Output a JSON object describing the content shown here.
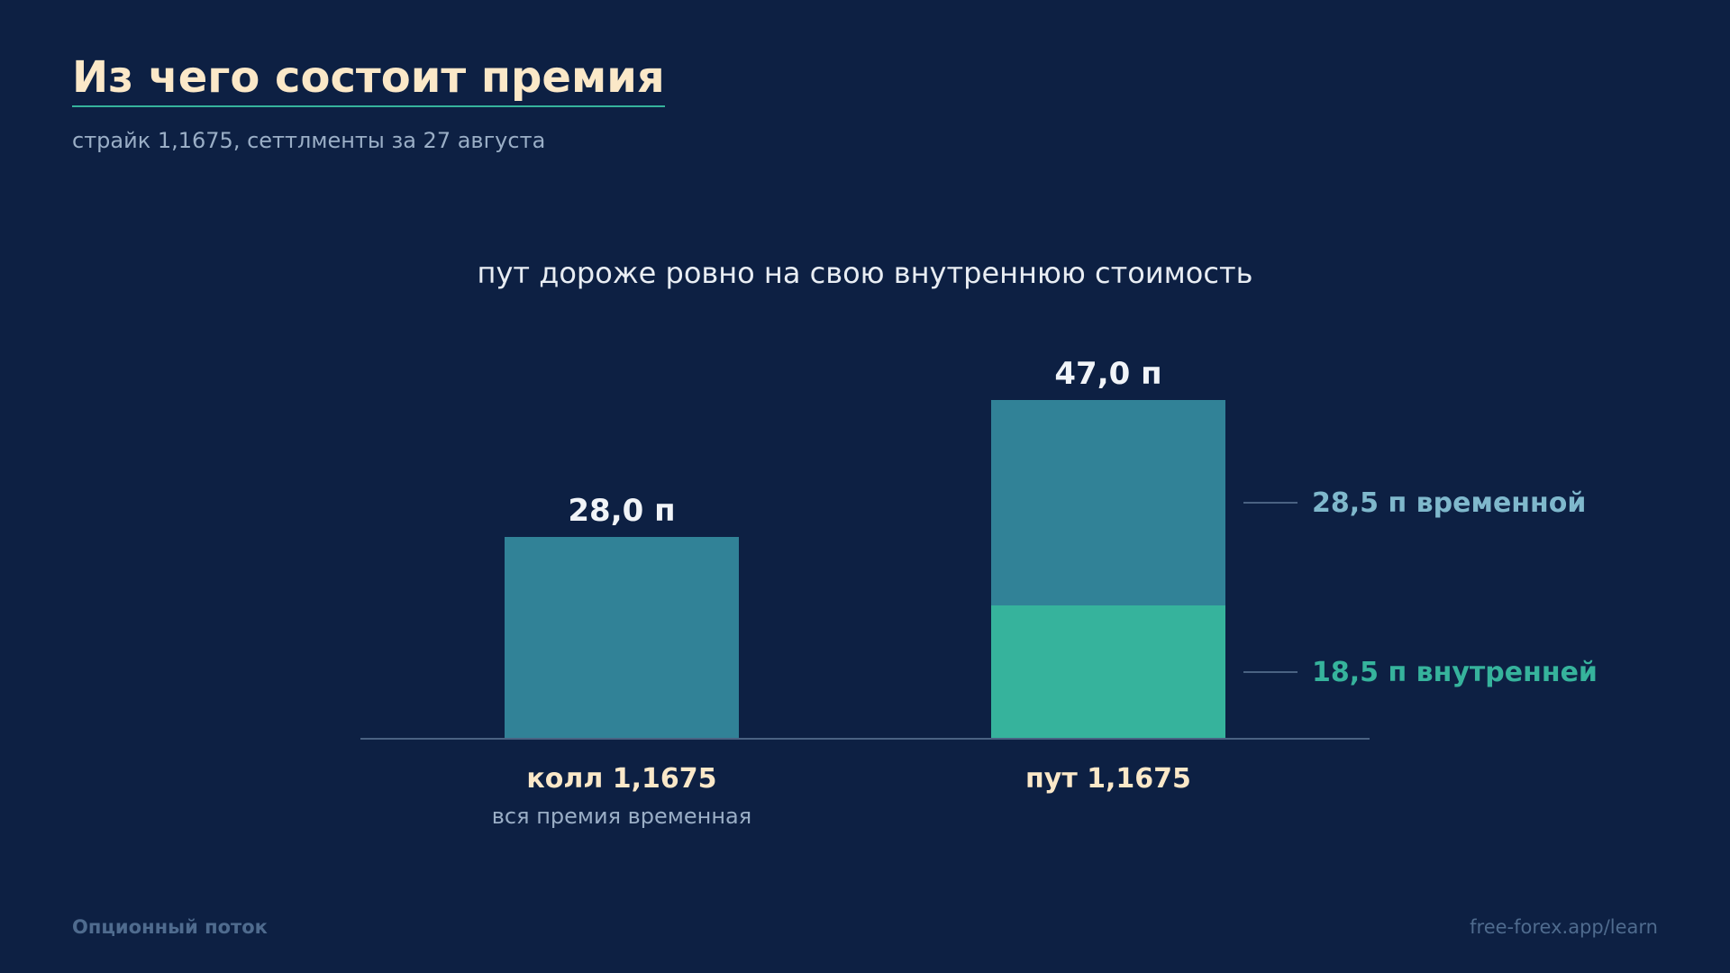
{
  "header": {
    "title": "Из чего состоит премия",
    "subtitle": "страйк 1,1675, сеттлменты за 27 августа"
  },
  "footer": {
    "brand": "Опционный поток",
    "link": "free-forex.app/learn"
  },
  "chart_data": {
    "type": "bar",
    "stacked": true,
    "title": "пут дороже ровно на свою внутреннюю стоимость",
    "categories": [
      "колл 1,1675",
      "пут 1,1675"
    ],
    "category_notes": [
      "вся премия временная",
      ""
    ],
    "totals": [
      28.0,
      47.0
    ],
    "total_labels": [
      "28,0 п",
      "47,0 п"
    ],
    "series": [
      {
        "key": "intrinsic",
        "values": [
          0,
          18.5
        ],
        "color": "#36b39c",
        "label": "18,5 п внутренней"
      },
      {
        "key": "time",
        "values": [
          28.0,
          28.5
        ],
        "color": "#318297",
        "label": "28,5 п временной"
      }
    ],
    "label_colors": {
      "time": "#7fb8cc",
      "intrinsic": "#36b39c"
    },
    "ylim": [
      0,
      47
    ],
    "grid": false,
    "legend": "right"
  }
}
